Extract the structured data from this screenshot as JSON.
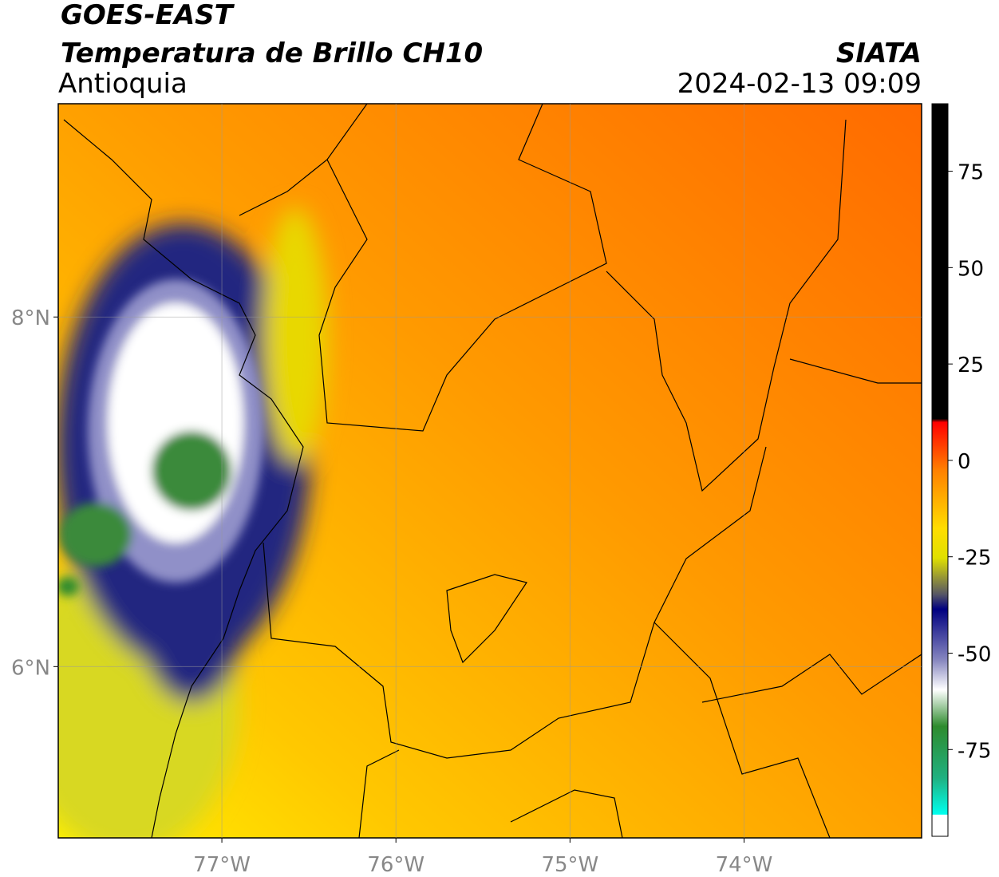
{
  "header": {
    "line1": "GOES-EAST",
    "line2": "Temperatura de Brillo CH10",
    "region": "Antioquia",
    "source": "SIATA",
    "timestamp": "2024-02-13 09:09"
  },
  "map": {
    "lonlim": [
      -77.94,
      -72.98
    ],
    "latlim": [
      5.02,
      9.22
    ],
    "xticks": [
      {
        "value": -77,
        "label": "77°W"
      },
      {
        "value": -76,
        "label": "76°W"
      },
      {
        "value": -75,
        "label": "75°W"
      },
      {
        "value": -74,
        "label": "74°W"
      }
    ],
    "yticks": [
      {
        "value": 8,
        "label": "8°N"
      },
      {
        "value": 6,
        "label": "6°N"
      }
    ],
    "grid": true
  },
  "colorbar": {
    "lim": [
      -97.5,
      92.5
    ],
    "ticks": [
      75,
      50,
      25,
      0,
      -25,
      -50,
      -75
    ]
  }
}
